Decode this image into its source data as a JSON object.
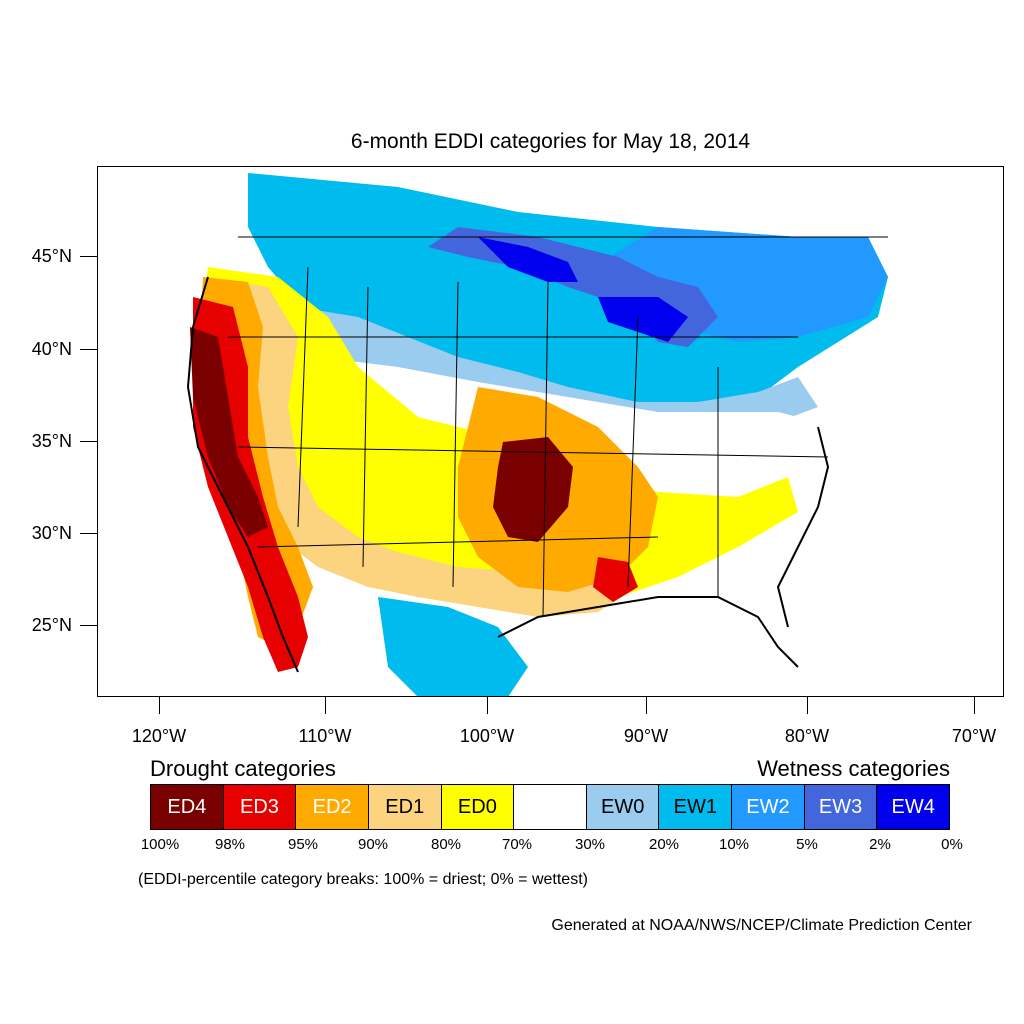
{
  "title": "6-month EDDI categories for May 18, 2014",
  "latitude_labels": [
    "45°N",
    "40°N",
    "35°N",
    "30°N",
    "25°N"
  ],
  "longitude_labels": [
    "120°W",
    "110°W",
    "100°W",
    "90°W",
    "80°W",
    "70°W"
  ],
  "legend": {
    "drought_heading": "Drought categories",
    "wetness_heading": "Wetness categories",
    "categories": [
      {
        "label": "ED4",
        "color": "#7a0000",
        "text_color": "#ffffff"
      },
      {
        "label": "ED3",
        "color": "#e60000",
        "text_color": "#ffffff"
      },
      {
        "label": "ED2",
        "color": "#ffaa00",
        "text_color": "#ffffff"
      },
      {
        "label": "ED1",
        "color": "#fcd37f",
        "text_color": "#000000"
      },
      {
        "label": "ED0",
        "color": "#ffff00",
        "text_color": "#000000"
      },
      {
        "label": "",
        "color": "#ffffff",
        "text_color": "#000000"
      },
      {
        "label": "EW0",
        "color": "#99ccee",
        "text_color": "#000000"
      },
      {
        "label": "EW1",
        "color": "#00bbee",
        "text_color": "#000000"
      },
      {
        "label": "EW2",
        "color": "#2299ff",
        "text_color": "#ffffff"
      },
      {
        "label": "EW3",
        "color": "#4466dd",
        "text_color": "#ffffff"
      },
      {
        "label": "EW4",
        "color": "#0000ee",
        "text_color": "#ffffff"
      }
    ],
    "breaks": [
      "100%",
      "98%",
      "95%",
      "90%",
      "80%",
      "70%",
      "30%",
      "20%",
      "10%",
      "5%",
      "2%",
      "0%"
    ]
  },
  "note": "(EDDI-percentile category breaks: 100% = driest; 0% = wettest)",
  "credit": "Generated at NOAA/NWS/NCEP/Climate Prediction Center"
}
